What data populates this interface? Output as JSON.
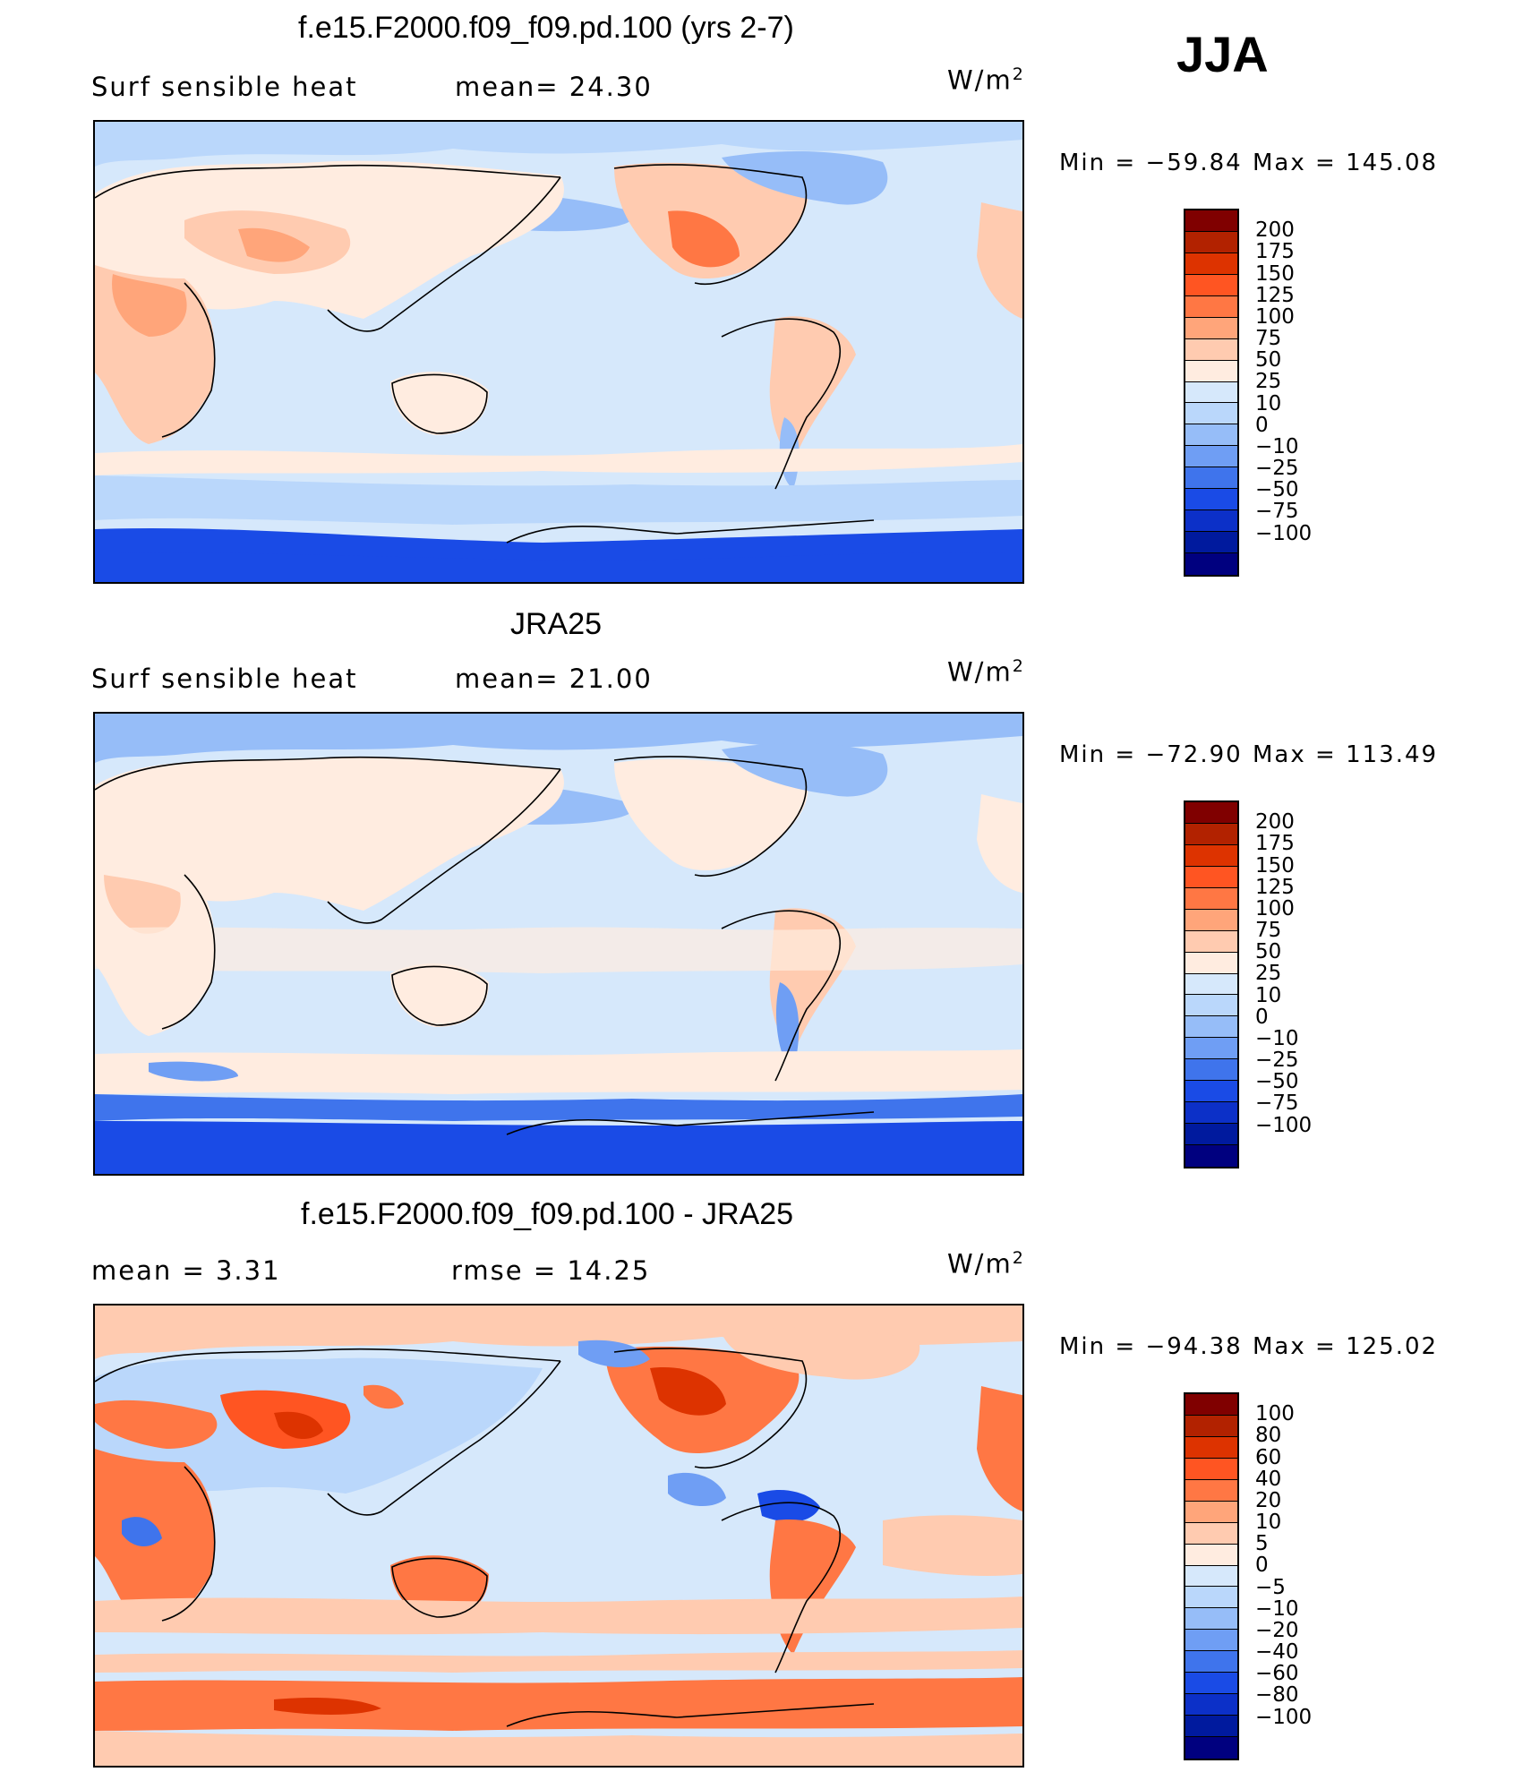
{
  "season": "JJA",
  "panels": [
    {
      "title": "f.e15.F2000.f09_f09.pd.100 (yrs 2-7)",
      "left_label": "Surf  sensible  heat",
      "stat1": "mean=   24.30",
      "stat2": "",
      "units": "W/m",
      "units_exp": "2",
      "min_label": "Min  =  −59.84",
      "max_label": "Max  =  145.08",
      "colorbar": {
        "colors": [
          "#800000",
          "#b22200",
          "#dd3300",
          "#ff5522",
          "#ff7744",
          "#ffa57a",
          "#ffcbb0",
          "#ffece0",
          "#d6e8fb",
          "#bad7fb",
          "#96bdf8",
          "#6f9ef4",
          "#3f74ec",
          "#1a4be6",
          "#0c30c8",
          "#001a9e",
          "#00007f"
        ],
        "labels": [
          "200",
          "175",
          "150",
          "125",
          "100",
          "75",
          "50",
          "25",
          "10",
          "0",
          "−10",
          "−25",
          "−50",
          "−75",
          "−100"
        ]
      }
    },
    {
      "title": "JRA25",
      "left_label": "Surf  sensible  heat",
      "stat1": "mean=   21.00",
      "stat2": "",
      "units": "W/m",
      "units_exp": "2",
      "min_label": "Min  =  −72.90",
      "max_label": "Max  =  113.49",
      "colorbar": {
        "colors": [
          "#800000",
          "#b22200",
          "#dd3300",
          "#ff5522",
          "#ff7744",
          "#ffa57a",
          "#ffcbb0",
          "#ffece0",
          "#d6e8fb",
          "#bad7fb",
          "#96bdf8",
          "#6f9ef4",
          "#3f74ec",
          "#1a4be6",
          "#0c30c8",
          "#001a9e",
          "#00007f"
        ],
        "labels": [
          "200",
          "175",
          "150",
          "125",
          "100",
          "75",
          "50",
          "25",
          "10",
          "0",
          "−10",
          "−25",
          "−50",
          "−75",
          "−100"
        ]
      }
    },
    {
      "title": "f.e15.F2000.f09_f09.pd.100 - JRA25",
      "left_label": "mean  =      3.31",
      "stat1": "",
      "stat2": "rmse  =    14.25",
      "units": "W/m",
      "units_exp": "2",
      "min_label": "Min  =  −94.38",
      "max_label": "Max  =  125.02",
      "colorbar": {
        "colors": [
          "#800000",
          "#b22200",
          "#dd3300",
          "#ff5522",
          "#ff7744",
          "#ffa57a",
          "#ffcbb0",
          "#ffece0",
          "#d6e8fb",
          "#bad7fb",
          "#96bdf8",
          "#6f9ef4",
          "#3f74ec",
          "#1a4be6",
          "#0c30c8",
          "#001a9e",
          "#00007f"
        ],
        "labels": [
          "100",
          "80",
          "60",
          "40",
          "20",
          "10",
          "5",
          "0",
          "−5",
          "−10",
          "−20",
          "−40",
          "−60",
          "−80",
          "−100"
        ]
      }
    }
  ]
}
